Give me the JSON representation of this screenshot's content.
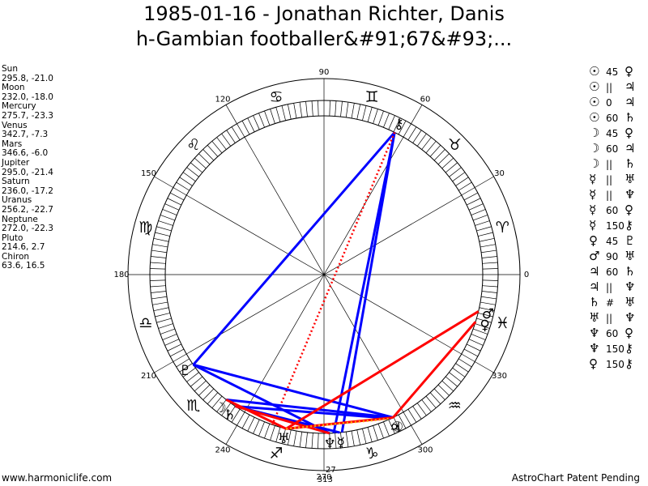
{
  "title": {
    "line1": "1985-01-16 - Jonathan Richter, Danis",
    "line2": "h-Gambian footballer&#91;67&#93;..."
  },
  "planets": [
    {
      "name": "Sun",
      "coords": "295.8, -21.0"
    },
    {
      "name": "Moon",
      "coords": "232.0, -18.0"
    },
    {
      "name": "Mercury",
      "coords": "275.7, -23.3"
    },
    {
      "name": "Venus",
      "coords": "342.7, -7.3"
    },
    {
      "name": "Mars",
      "coords": "346.6, -6.0"
    },
    {
      "name": "Jupiter",
      "coords": "295.0, -21.4"
    },
    {
      "name": "Saturn",
      "coords": "236.0, -17.2"
    },
    {
      "name": "Uranus",
      "coords": "256.2, -22.7"
    },
    {
      "name": "Neptune",
      "coords": "272.0, -22.3"
    },
    {
      "name": "Pluto",
      "coords": "214.6, 2.7"
    },
    {
      "name": "Chiron",
      "coords": "63.6, 16.5"
    }
  ],
  "aspects": [
    {
      "p1": "☉",
      "angle": "45",
      "p2": "♀"
    },
    {
      "p1": "☉",
      "angle": "||",
      "p2": "♃"
    },
    {
      "p1": "☉",
      "angle": "0",
      "p2": "♃"
    },
    {
      "p1": "☉",
      "angle": "60",
      "p2": "♄"
    },
    {
      "p1": "☽",
      "angle": "45",
      "p2": "♀"
    },
    {
      "p1": "☽",
      "angle": "60",
      "p2": "♃"
    },
    {
      "p1": "☽",
      "angle": "||",
      "p2": "♄"
    },
    {
      "p1": "☿",
      "angle": "||",
      "p2": "♅"
    },
    {
      "p1": "☿",
      "angle": "||",
      "p2": "♆"
    },
    {
      "p1": "☿",
      "angle": "60",
      "p2": "♀"
    },
    {
      "p1": "☿",
      "angle": "150",
      "p2": "⚷"
    },
    {
      "p1": "♀",
      "angle": "45",
      "p2": "♇"
    },
    {
      "p1": "♂",
      "angle": "90",
      "p2": "♅"
    },
    {
      "p1": "♃",
      "angle": "60",
      "p2": "♄"
    },
    {
      "p1": "♃",
      "angle": "||",
      "p2": "♆"
    },
    {
      "p1": "♄",
      "angle": "#",
      "p2": "♅"
    },
    {
      "p1": "♅",
      "angle": "||",
      "p2": "♆"
    },
    {
      "p1": "♆",
      "angle": "60",
      "p2": "♀"
    },
    {
      "p1": "♆",
      "angle": "150",
      "p2": "⚷"
    },
    {
      "p1": "♀",
      "angle": "150",
      "p2": "⚷"
    }
  ],
  "wheel": {
    "degree_labels": [
      {
        "deg": 0,
        "text": "0"
      },
      {
        "deg": 30,
        "text": "30"
      },
      {
        "deg": 60,
        "text": "60"
      },
      {
        "deg": 90,
        "text": "90"
      },
      {
        "deg": 120,
        "text": "120"
      },
      {
        "deg": 150,
        "text": "150"
      },
      {
        "deg": 180,
        "text": "180"
      },
      {
        "deg": 210,
        "text": "210"
      },
      {
        "deg": 240,
        "text": "240"
      },
      {
        "deg": 270,
        "text": "270"
      },
      {
        "deg": 300,
        "text": "300"
      },
      {
        "deg": 330,
        "text": "330"
      }
    ],
    "signs": [
      {
        "deg": 15,
        "glyph": "♈"
      },
      {
        "deg": 45,
        "glyph": "♉"
      },
      {
        "deg": 75,
        "glyph": "♊"
      },
      {
        "deg": 105,
        "glyph": "♋"
      },
      {
        "deg": 135,
        "glyph": "♌"
      },
      {
        "deg": 165,
        "glyph": "♍"
      },
      {
        "deg": 195,
        "glyph": "♎"
      },
      {
        "deg": 225,
        "glyph": "♏"
      },
      {
        "deg": 255,
        "glyph": "♐"
      },
      {
        "deg": 285,
        "glyph": "♑"
      },
      {
        "deg": 315,
        "glyph": "♒"
      },
      {
        "deg": 345,
        "glyph": "♓"
      }
    ],
    "bodies": [
      {
        "name": "Sun",
        "glyph": "☉",
        "lon": 295.8
      },
      {
        "name": "Moon",
        "glyph": "☽",
        "lon": 232.0
      },
      {
        "name": "Mercury",
        "glyph": "☿",
        "lon": 275.7
      },
      {
        "name": "Venus",
        "glyph": "♀",
        "lon": 342.7
      },
      {
        "name": "Mars",
        "glyph": "♂",
        "lon": 346.6
      },
      {
        "name": "Jupiter",
        "glyph": "♃",
        "lon": 295.0
      },
      {
        "name": "Saturn",
        "glyph": "♄",
        "lon": 236.0
      },
      {
        "name": "Uranus",
        "glyph": "♅",
        "lon": 256.2
      },
      {
        "name": "Neptune",
        "glyph": "♆",
        "lon": 272.0
      },
      {
        "name": "Pluto",
        "glyph": "♇",
        "lon": 214.6
      },
      {
        "name": "Chiron",
        "glyph": "⚷",
        "lon": 63.6
      }
    ],
    "extra_labels": [
      {
        "deg": 272,
        "text": "27"
      },
      {
        "deg": 270.3,
        "text": "313"
      }
    ],
    "aspect_lines": [
      {
        "from": 63.6,
        "to": 214.6,
        "color": "#0000ff",
        "style": "solid"
      },
      {
        "from": 63.6,
        "to": 276.5,
        "color": "#0000ff",
        "style": "solid"
      },
      {
        "from": 63.6,
        "to": 273.5,
        "color": "#0000ff",
        "style": "solid"
      },
      {
        "from": 63.6,
        "to": 251.0,
        "color": "#ff0000",
        "style": "dotted"
      },
      {
        "from": 214.6,
        "to": 272.0,
        "color": "#0000ff",
        "style": "solid"
      },
      {
        "from": 214.6,
        "to": 295.8,
        "color": "#0000ff",
        "style": "solid"
      },
      {
        "from": 236.0,
        "to": 295.0,
        "color": "#0000ff",
        "style": "solid"
      },
      {
        "from": 232.0,
        "to": 295.8,
        "color": "#0000ff",
        "style": "solid"
      },
      {
        "from": 236.0,
        "to": 275.7,
        "color": "#0000ff",
        "style": "solid"
      },
      {
        "from": 232.0,
        "to": 256.2,
        "color": "#ff0000",
        "style": "solid"
      },
      {
        "from": 236.0,
        "to": 272.0,
        "color": "#ff0000",
        "style": "solid"
      },
      {
        "from": 346.6,
        "to": 256.2,
        "color": "#ff0000",
        "style": "solid"
      },
      {
        "from": 342.7,
        "to": 295.8,
        "color": "#ff0000",
        "style": "solid"
      },
      {
        "from": 256.2,
        "to": 295.8,
        "color": "#ff0000",
        "style": "solid"
      },
      {
        "from": 256.2,
        "to": 295.0,
        "color": "#ffa500",
        "style": "dotted"
      }
    ]
  },
  "footer": {
    "left": "www.harmoniclife.com",
    "right": "AstroChart Patent Pending"
  }
}
